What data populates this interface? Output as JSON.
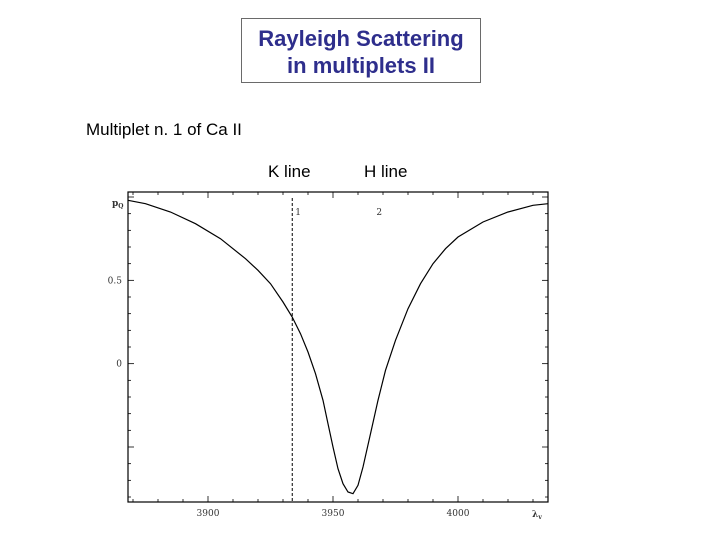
{
  "title": {
    "line1": "Rayleigh Scattering",
    "line2": "in multiplets II"
  },
  "subtitle": "Multiplet n. 1 of Ca II",
  "annotations": {
    "k_line": "K line",
    "h_line": "H line"
  },
  "chart_data": {
    "type": "line",
    "xlabel": "λ",
    "xlabel_sub": "v",
    "ylabel": "p",
    "ylabel_sub": "Q",
    "xlim": [
      3868,
      4036
    ],
    "ylim": [
      -0.83,
      1.03
    ],
    "x_ticks": [
      {
        "value": 3900,
        "label": "3900"
      },
      {
        "value": 3950,
        "label": "3950"
      },
      {
        "value": 4000,
        "label": "4000"
      }
    ],
    "y_ticks": [
      {
        "value": 0.5,
        "label": "0.5"
      },
      {
        "value": 0,
        "label": "0"
      }
    ],
    "grid": false,
    "series": [
      {
        "x": [
          3868,
          3875,
          3885,
          3895,
          3905,
          3915,
          3920,
          3925,
          3930,
          3933.7,
          3937,
          3940,
          3943,
          3946,
          3948,
          3950,
          3952,
          3954,
          3956,
          3958,
          3960,
          3962,
          3965,
          3968,
          3971,
          3975,
          3980,
          3985,
          3990,
          3995,
          4000,
          4010,
          4020,
          4030,
          4036
        ],
        "y": [
          0.98,
          0.96,
          0.91,
          0.84,
          0.75,
          0.63,
          0.56,
          0.48,
          0.37,
          0.28,
          0.18,
          0.07,
          -0.06,
          -0.22,
          -0.36,
          -0.5,
          -0.63,
          -0.72,
          -0.77,
          -0.78,
          -0.73,
          -0.62,
          -0.42,
          -0.22,
          -0.04,
          0.14,
          0.33,
          0.48,
          0.6,
          0.69,
          0.76,
          0.85,
          0.91,
          0.95,
          0.96
        ]
      }
    ],
    "vline": {
      "x": 3933.7,
      "label": "1"
    },
    "marker_label": {
      "x": 3968.5,
      "label": "2"
    }
  }
}
